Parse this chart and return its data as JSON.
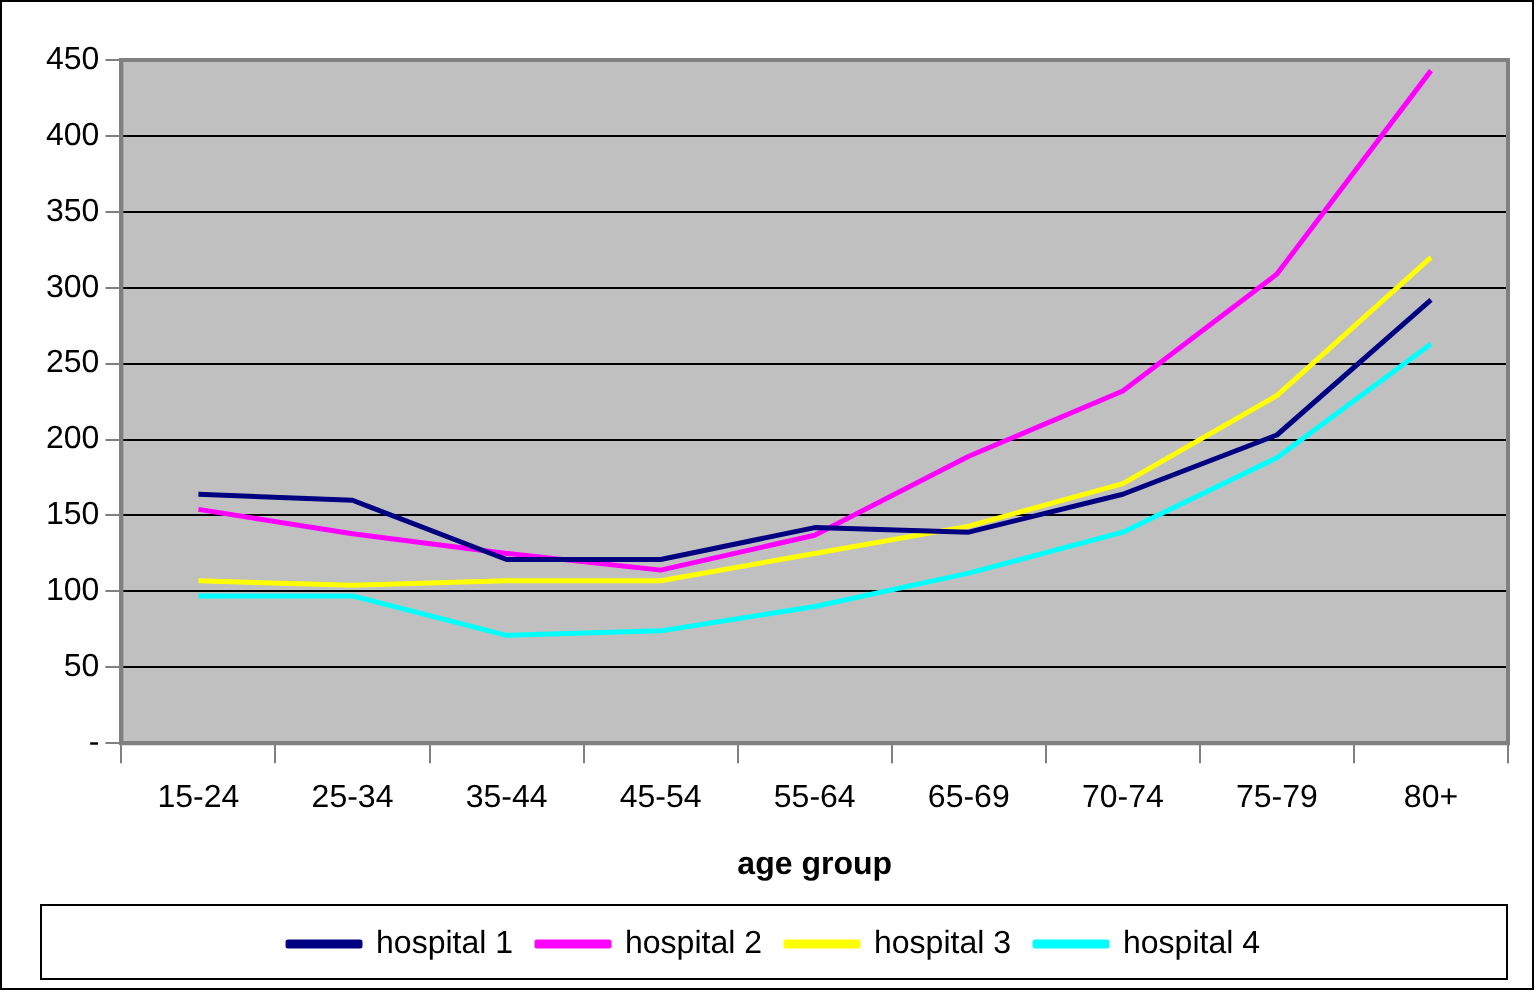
{
  "chart_data": {
    "type": "line",
    "xlabel": "age group",
    "categories": [
      "15-24",
      "25-34",
      "35-44",
      "45-54",
      "55-64",
      "65-69",
      "70-74",
      "75-79",
      "80+"
    ],
    "series": [
      {
        "name": "hospital 1",
        "color": "#000080",
        "values": [
          164,
          160,
          121,
          121,
          142,
          139,
          164,
          203,
          292
        ]
      },
      {
        "name": "hospital 2",
        "color": "#ff00ff",
        "values": [
          154,
          138,
          125,
          114,
          137,
          189,
          232,
          309,
          443
        ]
      },
      {
        "name": "hospital 3",
        "color": "#ffff00",
        "values": [
          107,
          104,
          107,
          107,
          125,
          143,
          171,
          229,
          320
        ]
      },
      {
        "name": "hospital 4",
        "color": "#00ffff",
        "values": [
          97,
          97,
          71,
          74,
          90,
          112,
          139,
          188,
          263
        ]
      }
    ],
    "ylim": [
      0,
      450
    ],
    "yticks": [
      {
        "value": 0,
        "label": "-"
      },
      50,
      100,
      150,
      200,
      250,
      300,
      350,
      400,
      450
    ],
    "grid": "y",
    "legend": "bottom",
    "marker": "none",
    "line_style": "solid"
  }
}
